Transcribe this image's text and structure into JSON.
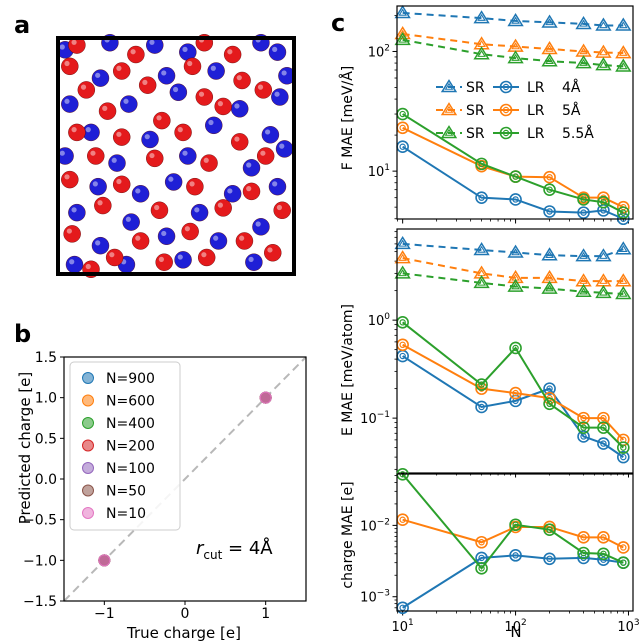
{
  "panel_labels": [
    "a",
    "b",
    "c"
  ],
  "colors": {
    "red_atom": "#e41a1c",
    "blue_atom": "#1f1fd6",
    "c_blue": "#1f77b4",
    "c_orange": "#ff7f0e",
    "c_green": "#2ca02c",
    "c_red": "#d62728",
    "c_purple": "#9467bd",
    "c_brown": "#8c564b",
    "c_pink": "#e377c2"
  },
  "chart_data": [
    {
      "id": "a",
      "type": "scatter",
      "title": "",
      "series": [
        {
          "color": "blue",
          "points": [
            [
              0.03,
              0.05
            ],
            [
              0.22,
              0.02
            ],
            [
              0.41,
              0.03
            ],
            [
              0.55,
              0.06
            ],
            [
              0.86,
              0.02
            ],
            [
              0.93,
              0.06
            ],
            [
              0.18,
              0.17
            ],
            [
              0.46,
              0.16
            ],
            [
              0.67,
              0.14
            ],
            [
              0.97,
              0.16
            ],
            [
              0.05,
              0.28
            ],
            [
              0.3,
              0.28
            ],
            [
              0.51,
              0.23
            ],
            [
              0.77,
              0.3
            ],
            [
              0.94,
              0.25
            ],
            [
              0.14,
              0.4
            ],
            [
              0.39,
              0.43
            ],
            [
              0.66,
              0.37
            ],
            [
              0.9,
              0.41
            ],
            [
              0.03,
              0.5
            ],
            [
              0.25,
              0.53
            ],
            [
              0.55,
              0.5
            ],
            [
              0.82,
              0.55
            ],
            [
              0.96,
              0.47
            ],
            [
              0.17,
              0.63
            ],
            [
              0.35,
              0.66
            ],
            [
              0.49,
              0.61
            ],
            [
              0.74,
              0.66
            ],
            [
              0.93,
              0.63
            ],
            [
              0.08,
              0.74
            ],
            [
              0.31,
              0.78
            ],
            [
              0.6,
              0.74
            ],
            [
              0.86,
              0.8
            ],
            [
              0.46,
              0.84
            ],
            [
              0.18,
              0.88
            ],
            [
              0.68,
              0.86
            ],
            [
              0.53,
              0.94
            ],
            [
              0.29,
              0.96
            ],
            [
              0.83,
              0.95
            ],
            [
              0.07,
              0.96
            ]
          ]
        },
        {
          "color": "red",
          "points": [
            [
              0.08,
              0.03
            ],
            [
              0.33,
              0.07
            ],
            [
              0.62,
              0.02
            ],
            [
              0.74,
              0.07
            ],
            [
              0.05,
              0.12
            ],
            [
              0.27,
              0.14
            ],
            [
              0.57,
              0.12
            ],
            [
              0.78,
              0.18
            ],
            [
              0.12,
              0.22
            ],
            [
              0.38,
              0.2
            ],
            [
              0.62,
              0.25
            ],
            [
              0.87,
              0.22
            ],
            [
              0.21,
              0.31
            ],
            [
              0.44,
              0.35
            ],
            [
              0.7,
              0.29
            ],
            [
              0.08,
              0.4
            ],
            [
              0.27,
              0.42
            ],
            [
              0.53,
              0.4
            ],
            [
              0.77,
              0.44
            ],
            [
              0.16,
              0.5
            ],
            [
              0.41,
              0.51
            ],
            [
              0.64,
              0.53
            ],
            [
              0.88,
              0.5
            ],
            [
              0.05,
              0.6
            ],
            [
              0.27,
              0.62
            ],
            [
              0.58,
              0.63
            ],
            [
              0.82,
              0.65
            ],
            [
              0.19,
              0.71
            ],
            [
              0.43,
              0.73
            ],
            [
              0.7,
              0.72
            ],
            [
              0.95,
              0.73
            ],
            [
              0.06,
              0.83
            ],
            [
              0.35,
              0.86
            ],
            [
              0.56,
              0.82
            ],
            [
              0.79,
              0.86
            ],
            [
              0.24,
              0.93
            ],
            [
              0.45,
              0.95
            ],
            [
              0.63,
              0.93
            ],
            [
              0.91,
              0.91
            ],
            [
              0.14,
              0.98
            ]
          ]
        }
      ]
    },
    {
      "id": "b",
      "type": "scatter",
      "xlabel": "True charge [e]",
      "ylabel": "Predicted charge [e]",
      "xlim": [
        -1.5,
        1.5
      ],
      "ylim": [
        -1.5,
        1.5
      ],
      "xticks": [
        -1,
        0,
        1
      ],
      "yticks": [
        -1.5,
        -1.0,
        -0.5,
        0.0,
        0.5,
        1.0,
        1.5
      ],
      "xtick_labels": [
        "−1",
        "0",
        "1"
      ],
      "ytick_labels": [
        "−1.5",
        "−1.0",
        "−0.5",
        "0.0",
        "0.5",
        "1.0",
        "1.5"
      ],
      "diagonal": true,
      "annotation": {
        "main": "r",
        "sub": "cut",
        "rest": " = 4Å"
      },
      "legend_position": "upper left",
      "series": [
        {
          "name": "N=900",
          "color": "#1f77b4",
          "points": [
            [
              -1,
              -1
            ],
            [
              1,
              1
            ]
          ]
        },
        {
          "name": "N=600",
          "color": "#ff7f0e",
          "points": [
            [
              -1,
              -1
            ],
            [
              1,
              1
            ]
          ]
        },
        {
          "name": "N=400",
          "color": "#2ca02c",
          "points": [
            [
              -1,
              -1
            ],
            [
              1,
              1
            ]
          ]
        },
        {
          "name": "N=200",
          "color": "#d62728",
          "points": [
            [
              -1,
              -1
            ],
            [
              1,
              1
            ]
          ]
        },
        {
          "name": "N=100",
          "color": "#9467bd",
          "points": [
            [
              -1,
              -1
            ],
            [
              1,
              1
            ]
          ]
        },
        {
          "name": "N=50",
          "color": "#8c564b",
          "points": [
            [
              -1,
              -1
            ],
            [
              1,
              1
            ]
          ]
        },
        {
          "name": "N=10",
          "color": "#e377c2",
          "points": [
            [
              -1,
              -1
            ],
            [
              1,
              1
            ]
          ]
        }
      ]
    },
    {
      "id": "c-top",
      "type": "line",
      "yscale": "log",
      "xscale": "log",
      "ylabel": "F MAE [meV/Å]",
      "ylim_log10": [
        0.6,
        2.38
      ],
      "xlim_log10": [
        0.95,
        3.04
      ],
      "yticks": [
        {
          "base": "10",
          "exp": "1",
          "value": 10
        },
        {
          "base": "10",
          "exp": "2",
          "value": 100
        }
      ],
      "x": [
        10,
        50,
        100,
        200,
        400,
        600,
        900
      ],
      "series": [
        {
          "name": "SR",
          "marker": "triangle",
          "dashed": true,
          "color": "#1f77b4",
          "values": [
            210,
            190,
            180,
            175,
            170,
            165,
            165
          ]
        },
        {
          "name": "SR",
          "marker": "triangle",
          "dashed": true,
          "color": "#ff7f0e",
          "values": [
            140,
            115,
            110,
            105,
            100,
            98,
            97
          ]
        },
        {
          "name": "SR",
          "marker": "triangle",
          "dashed": true,
          "color": "#2ca02c",
          "values": [
            125,
            95,
            88,
            83,
            80,
            77,
            75
          ]
        },
        {
          "name": "LR",
          "marker": "circle",
          "dashed": false,
          "color": "#1f77b4",
          "values": [
            16,
            6,
            5.8,
            4.6,
            4.5,
            4.7,
            4
          ]
        },
        {
          "name": "LR",
          "marker": "circle",
          "dashed": false,
          "color": "#ff7f0e",
          "values": [
            23,
            11,
            9,
            8.9,
            6,
            6,
            5
          ]
        },
        {
          "name": "LR",
          "marker": "circle",
          "dashed": false,
          "color": "#2ca02c",
          "values": [
            30,
            11.5,
            9,
            7,
            5.8,
            5.5,
            4.5
          ]
        }
      ],
      "legend_position": "center",
      "legend": [
        {
          "sr": "SR",
          "lr": "LR",
          "cutoff": "4Å",
          "color": "#1f77b4"
        },
        {
          "sr": "SR",
          "lr": "LR",
          "cutoff": "5Å",
          "color": "#ff7f0e"
        },
        {
          "sr": "SR",
          "lr": "LR",
          "cutoff": "5.5Å",
          "color": "#2ca02c"
        }
      ]
    },
    {
      "id": "c-mid",
      "type": "line",
      "yscale": "log",
      "xscale": "log",
      "ylabel": "E MAE [meV/atom]",
      "ylim_log10": [
        -1.56,
        0.93
      ],
      "xlim_log10": [
        0.95,
        3.04
      ],
      "yticks": [
        {
          "base": "10",
          "exp": "−1",
          "value": 0.1
        },
        {
          "base": "10",
          "exp": "0",
          "value": 1
        }
      ],
      "x": [
        10,
        50,
        100,
        200,
        400,
        600,
        900
      ],
      "series": [
        {
          "name": "SR",
          "marker": "triangle",
          "dashed": true,
          "color": "#1f77b4",
          "values": [
            6,
            5.2,
            4.9,
            4.6,
            4.5,
            4.5,
            5.3
          ]
        },
        {
          "name": "SR",
          "marker": "triangle",
          "dashed": true,
          "color": "#ff7f0e",
          "values": [
            4.3,
            3,
            2.7,
            2.7,
            2.5,
            2.5,
            2.5
          ]
        },
        {
          "name": "SR",
          "marker": "triangle",
          "dashed": true,
          "color": "#2ca02c",
          "values": [
            3,
            2.4,
            2.2,
            2.1,
            1.95,
            1.9,
            1.85
          ]
        },
        {
          "name": "LR",
          "marker": "circle",
          "dashed": false,
          "color": "#1f77b4",
          "values": [
            0.43,
            0.13,
            0.15,
            0.2,
            0.065,
            0.055,
            0.04
          ]
        },
        {
          "name": "LR",
          "marker": "circle",
          "dashed": false,
          "color": "#ff7f0e",
          "values": [
            0.56,
            0.2,
            0.18,
            0.16,
            0.1,
            0.1,
            0.06
          ]
        },
        {
          "name": "LR",
          "marker": "circle",
          "dashed": false,
          "color": "#2ca02c",
          "values": [
            0.95,
            0.22,
            0.52,
            0.14,
            0.08,
            0.08,
            0.05
          ]
        }
      ]
    },
    {
      "id": "c-bottom",
      "type": "line",
      "yscale": "log",
      "xscale": "log",
      "xlabel": "N",
      "ylabel": "charge MAE [e]",
      "ylim_log10": [
        -3.2,
        -1.28
      ],
      "xlim_log10": [
        0.95,
        3.04
      ],
      "yticks": [
        {
          "base": "10",
          "exp": "−3",
          "value": 0.001
        },
        {
          "base": "10",
          "exp": "−2",
          "value": 0.01
        }
      ],
      "xticks": [
        {
          "base": "10",
          "exp": "1",
          "value": 10
        },
        {
          "base": "10",
          "exp": "2",
          "value": 100
        },
        {
          "base": "10",
          "exp": "3",
          "value": 1000
        }
      ],
      "x": [
        10,
        50,
        100,
        200,
        400,
        600,
        900
      ],
      "series": [
        {
          "name": "LR",
          "marker": "circle",
          "dashed": false,
          "color": "#1f77b4",
          "values": [
            0.0007,
            0.0035,
            0.0038,
            0.0034,
            0.0035,
            0.0033,
            0.003
          ]
        },
        {
          "name": "LR",
          "marker": "circle",
          "dashed": false,
          "color": "#ff7f0e",
          "values": [
            0.012,
            0.0058,
            0.0095,
            0.0095,
            0.0068,
            0.0068,
            0.0049
          ]
        },
        {
          "name": "LR",
          "marker": "circle",
          "dashed": false,
          "color": "#2ca02c",
          "values": [
            0.052,
            0.0025,
            0.0102,
            0.0087,
            0.0041,
            0.004,
            0.003
          ]
        }
      ]
    }
  ]
}
